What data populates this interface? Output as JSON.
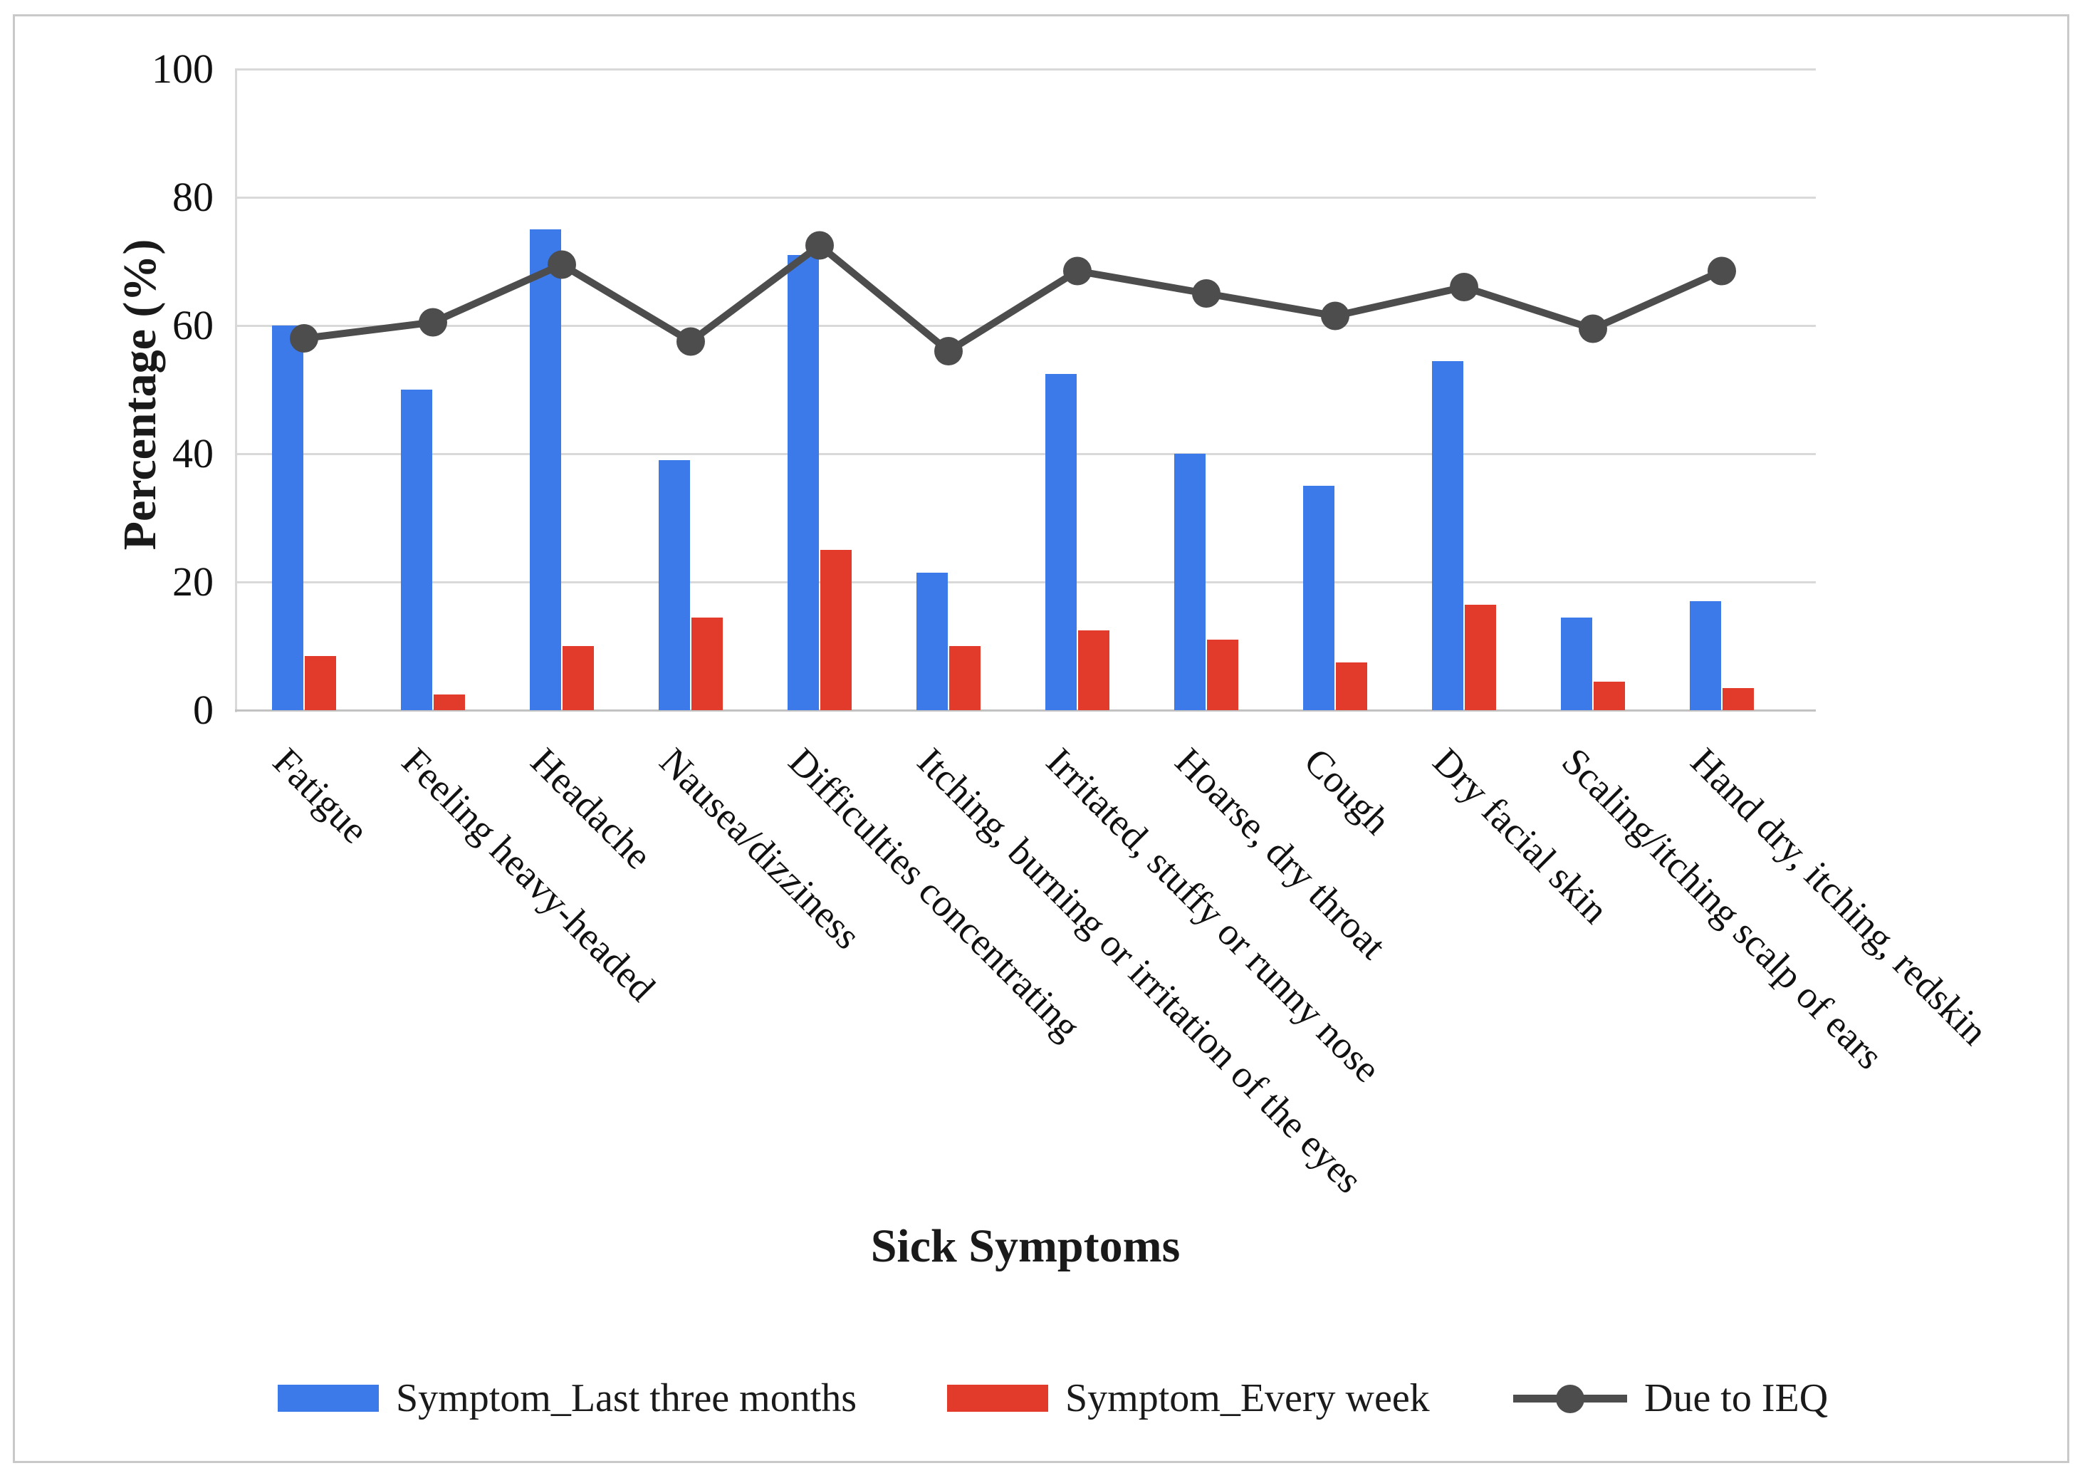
{
  "chart_data": {
    "type": "bar+line",
    "title": "",
    "xlabel": "Sick Symptoms",
    "ylabel": "Percentage (%)",
    "ylim": [
      0,
      100
    ],
    "yticks": [
      0,
      20,
      40,
      60,
      80,
      100
    ],
    "grid": true,
    "legend_position": "bottom",
    "categories": [
      "Fatigue",
      "Feeling heavy-headed",
      "Headache",
      "Nausea/dizziness",
      "Difficulties concentrating",
      "Itching, burning or irritation of the eyes",
      "Irritated, stuffy or runny nose",
      "Hoarse, dry throat",
      "Cough",
      "Dry facial skin",
      "Scaling/itching scalp of ears",
      "Hand dry, itching, redskin"
    ],
    "series": [
      {
        "name": "Symptom_Last three months",
        "type": "bar",
        "color": "#3c7ae9",
        "values": [
          60,
          50,
          75,
          39,
          71,
          21.5,
          52.5,
          40,
          35,
          54.5,
          14.5,
          17
        ]
      },
      {
        "name": "Symptom_Every week",
        "type": "bar",
        "color": "#e33b2b",
        "values": [
          8.5,
          2.5,
          10,
          14.5,
          25,
          10,
          12.5,
          11,
          7.5,
          16.5,
          4.5,
          3.5
        ]
      },
      {
        "name": "Due to IEQ",
        "type": "line",
        "color": "#4d4d4d",
        "values": [
          58,
          60.5,
          69.5,
          57.5,
          72.5,
          56,
          68.5,
          65,
          61.5,
          66,
          59.5,
          68.5
        ]
      }
    ],
    "colors": {
      "gridline": "#d9d9d9",
      "frame_border": "#c9c9c9",
      "text": "#1a1a1a"
    }
  }
}
